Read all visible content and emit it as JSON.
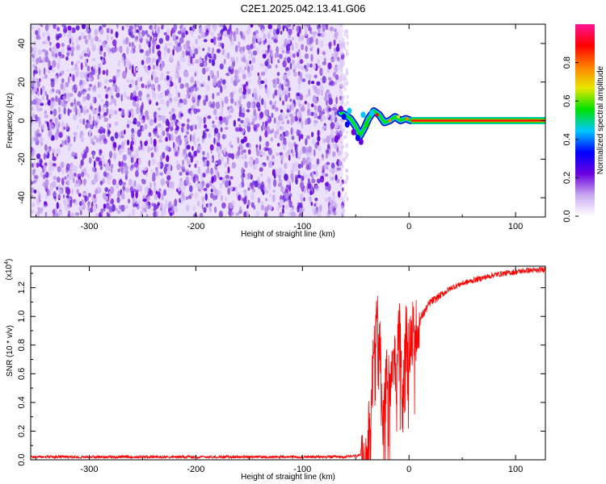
{
  "title": "C2E1.2025.042.13.41.G06",
  "chart_data": [
    {
      "type": "heatmap",
      "xlabel": "Height of straight line (km)",
      "ylabel": "Frequency (Hz)",
      "xlim": [
        -355,
        128
      ],
      "ylim": [
        -50,
        50
      ],
      "xticks": [
        -300,
        -200,
        -100,
        0,
        100
      ],
      "xtick_labels": [
        "-300",
        "-200",
        "-100",
        "0",
        "100"
      ],
      "yticks": [
        -40,
        -20,
        0,
        20,
        40
      ],
      "ytick_labels": [
        "-40",
        "-20",
        "0",
        "20",
        "40"
      ],
      "noise_region_x": [
        -355,
        -62
      ],
      "signal_start_x": -65,
      "signal_track": [
        [
          -64,
          4
        ],
        [
          -60,
          3
        ],
        [
          -55,
          1
        ],
        [
          -50,
          -3
        ],
        [
          -46,
          -8
        ],
        [
          -42,
          -4
        ],
        [
          -38,
          1
        ],
        [
          -33,
          5
        ],
        [
          -28,
          3
        ],
        [
          -23,
          -1
        ],
        [
          -18,
          0
        ],
        [
          -13,
          2
        ],
        [
          -8,
          0
        ],
        [
          -3,
          1
        ],
        [
          2,
          0
        ],
        [
          128,
          0
        ]
      ],
      "steady_line_y": 0,
      "colorbar": {
        "label": "Normalized spectral amplitude",
        "ticks": [
          0.0,
          0.2,
          0.4,
          0.6,
          0.8
        ],
        "tick_labels": [
          "0.0",
          "0.2",
          "0.4",
          "0.6",
          "0.8"
        ],
        "range": [
          0,
          1
        ],
        "colors": [
          "#ffffff",
          "#c8a8f0",
          "#6a00e0",
          "#0000ff",
          "#00c8ff",
          "#00e000",
          "#e8e800",
          "#ff8000",
          "#ff0000",
          "#ff1493"
        ]
      },
      "grid": false
    },
    {
      "type": "line",
      "xlabel": "Height of straight line (km)",
      "ylabel": "SNR (10 * v/v)",
      "y_multiplier": "(x10",
      "y_multiplier_exp": "4",
      "y_multiplier_close": ")",
      "xlim": [
        -355,
        128
      ],
      "ylim": [
        0,
        1.35
      ],
      "xticks": [
        -300,
        -200,
        -100,
        0,
        100
      ],
      "xtick_labels": [
        "-300",
        "-200",
        "-100",
        "0",
        "100"
      ],
      "yticks": [
        0.0,
        0.2,
        0.4,
        0.6,
        0.8,
        1.0,
        1.2
      ],
      "ytick_labels": [
        "0.0",
        "0.2",
        "0.4",
        "0.6",
        "0.8",
        "1.0",
        "1.2"
      ],
      "series": [
        {
          "color": "#ff0000",
          "x": [
            -355,
            -300,
            -250,
            -200,
            -150,
            -100,
            -60,
            -45,
            -40,
            -36,
            -33,
            -30,
            -27,
            -24,
            -21,
            -18,
            -15,
            -12,
            -9,
            -6,
            -3,
            0,
            3,
            6,
            9,
            12,
            16,
            20,
            25,
            30,
            40,
            50,
            60,
            70,
            80,
            90,
            100,
            110,
            120,
            128
          ],
          "y": [
            0.01,
            0.01,
            0.01,
            0.01,
            0.01,
            0.01,
            0.01,
            0.02,
            0.05,
            0.3,
            0.9,
            1.1,
            0.8,
            0.2,
            0.6,
            0.5,
            0.8,
            0.6,
            0.9,
            0.5,
            0.9,
            0.8,
            0.9,
            0.9,
            0.95,
            1.0,
            1.05,
            1.1,
            1.12,
            1.15,
            1.2,
            1.23,
            1.25,
            1.27,
            1.29,
            1.3,
            1.31,
            1.32,
            1.32,
            1.33
          ]
        }
      ],
      "grid": false
    }
  ]
}
